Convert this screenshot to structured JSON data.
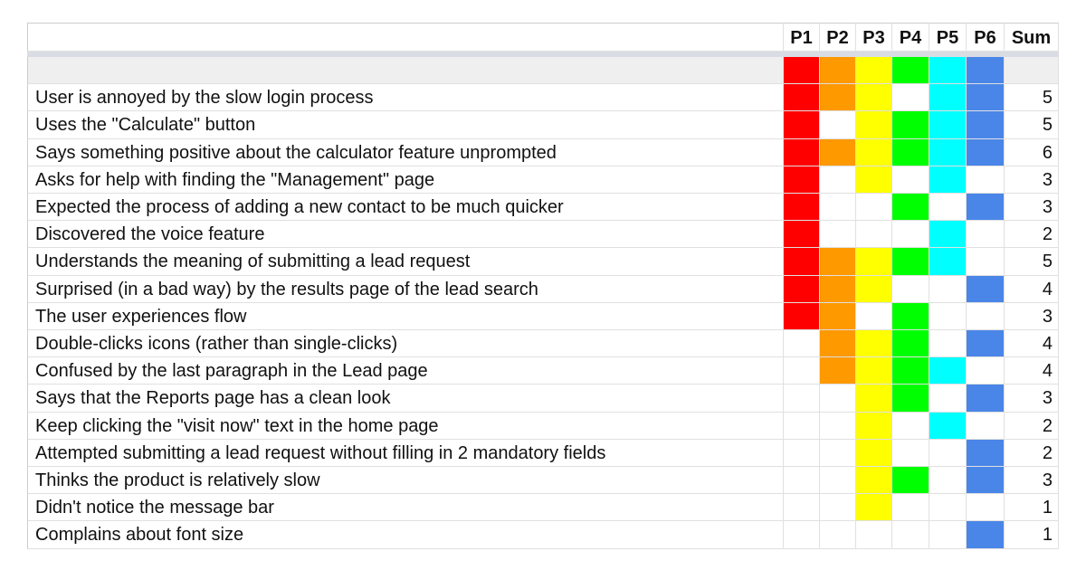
{
  "header": {
    "columns": [
      {
        "name": "P1",
        "color": "#ff0000"
      },
      {
        "name": "P2",
        "color": "#ff9900"
      },
      {
        "name": "P3",
        "color": "#ffff00"
      },
      {
        "name": "P4",
        "color": "#00ff00"
      },
      {
        "name": "P5",
        "color": "#00ffff"
      },
      {
        "name": "P6",
        "color": "#4a86e8"
      }
    ],
    "sum": "Sum"
  },
  "rows": [
    {
      "label": "User is annoyed by the slow login process",
      "marks": [
        true,
        true,
        true,
        false,
        true,
        true
      ],
      "sum": 5
    },
    {
      "label": "Uses the \"Calculate\" button",
      "marks": [
        true,
        false,
        true,
        true,
        true,
        true
      ],
      "sum": 5
    },
    {
      "label": "Says something positive about the calculator feature unprompted",
      "marks": [
        true,
        true,
        true,
        true,
        true,
        true
      ],
      "sum": 6
    },
    {
      "label": "Asks for help with finding the \"Management\" page",
      "marks": [
        true,
        false,
        true,
        false,
        true,
        false
      ],
      "sum": 3
    },
    {
      "label": "Expected the process of adding a new contact to be much quicker",
      "marks": [
        true,
        false,
        false,
        true,
        false,
        true
      ],
      "sum": 3
    },
    {
      "label": "Discovered the voice feature",
      "marks": [
        true,
        false,
        false,
        false,
        true,
        false
      ],
      "sum": 2
    },
    {
      "label": "Understands the meaning of submitting a lead request",
      "marks": [
        true,
        true,
        true,
        true,
        true,
        false
      ],
      "sum": 5
    },
    {
      "label": "Surprised (in a bad way) by the results page of the lead search",
      "marks": [
        true,
        true,
        true,
        false,
        false,
        true
      ],
      "sum": 4
    },
    {
      "label": "The user experiences flow",
      "marks": [
        true,
        true,
        false,
        true,
        false,
        false
      ],
      "sum": 3
    },
    {
      "label": "Double-clicks icons (rather than single-clicks)",
      "marks": [
        false,
        true,
        true,
        true,
        false,
        true
      ],
      "sum": 4
    },
    {
      "label": "Confused by the last paragraph in the Lead page",
      "marks": [
        false,
        true,
        true,
        true,
        true,
        false
      ],
      "sum": 4
    },
    {
      "label": "Says that the Reports page has a clean look",
      "marks": [
        false,
        false,
        true,
        true,
        false,
        true
      ],
      "sum": 3
    },
    {
      "label": "Keep clicking the \"visit now\" text in the home page",
      "marks": [
        false,
        false,
        true,
        false,
        true,
        false
      ],
      "sum": 2
    },
    {
      "label": "Attempted submitting a lead request without filling in 2 mandatory fields",
      "marks": [
        false,
        false,
        true,
        false,
        false,
        true
      ],
      "sum": 2
    },
    {
      "label": "Thinks the product is relatively slow",
      "marks": [
        false,
        false,
        true,
        true,
        false,
        true
      ],
      "sum": 3
    },
    {
      "label": "Didn't notice the message bar",
      "marks": [
        false,
        false,
        true,
        false,
        false,
        false
      ],
      "sum": 1
    },
    {
      "label": "Complains about font size",
      "marks": [
        false,
        false,
        false,
        false,
        false,
        true
      ],
      "sum": 1
    }
  ]
}
